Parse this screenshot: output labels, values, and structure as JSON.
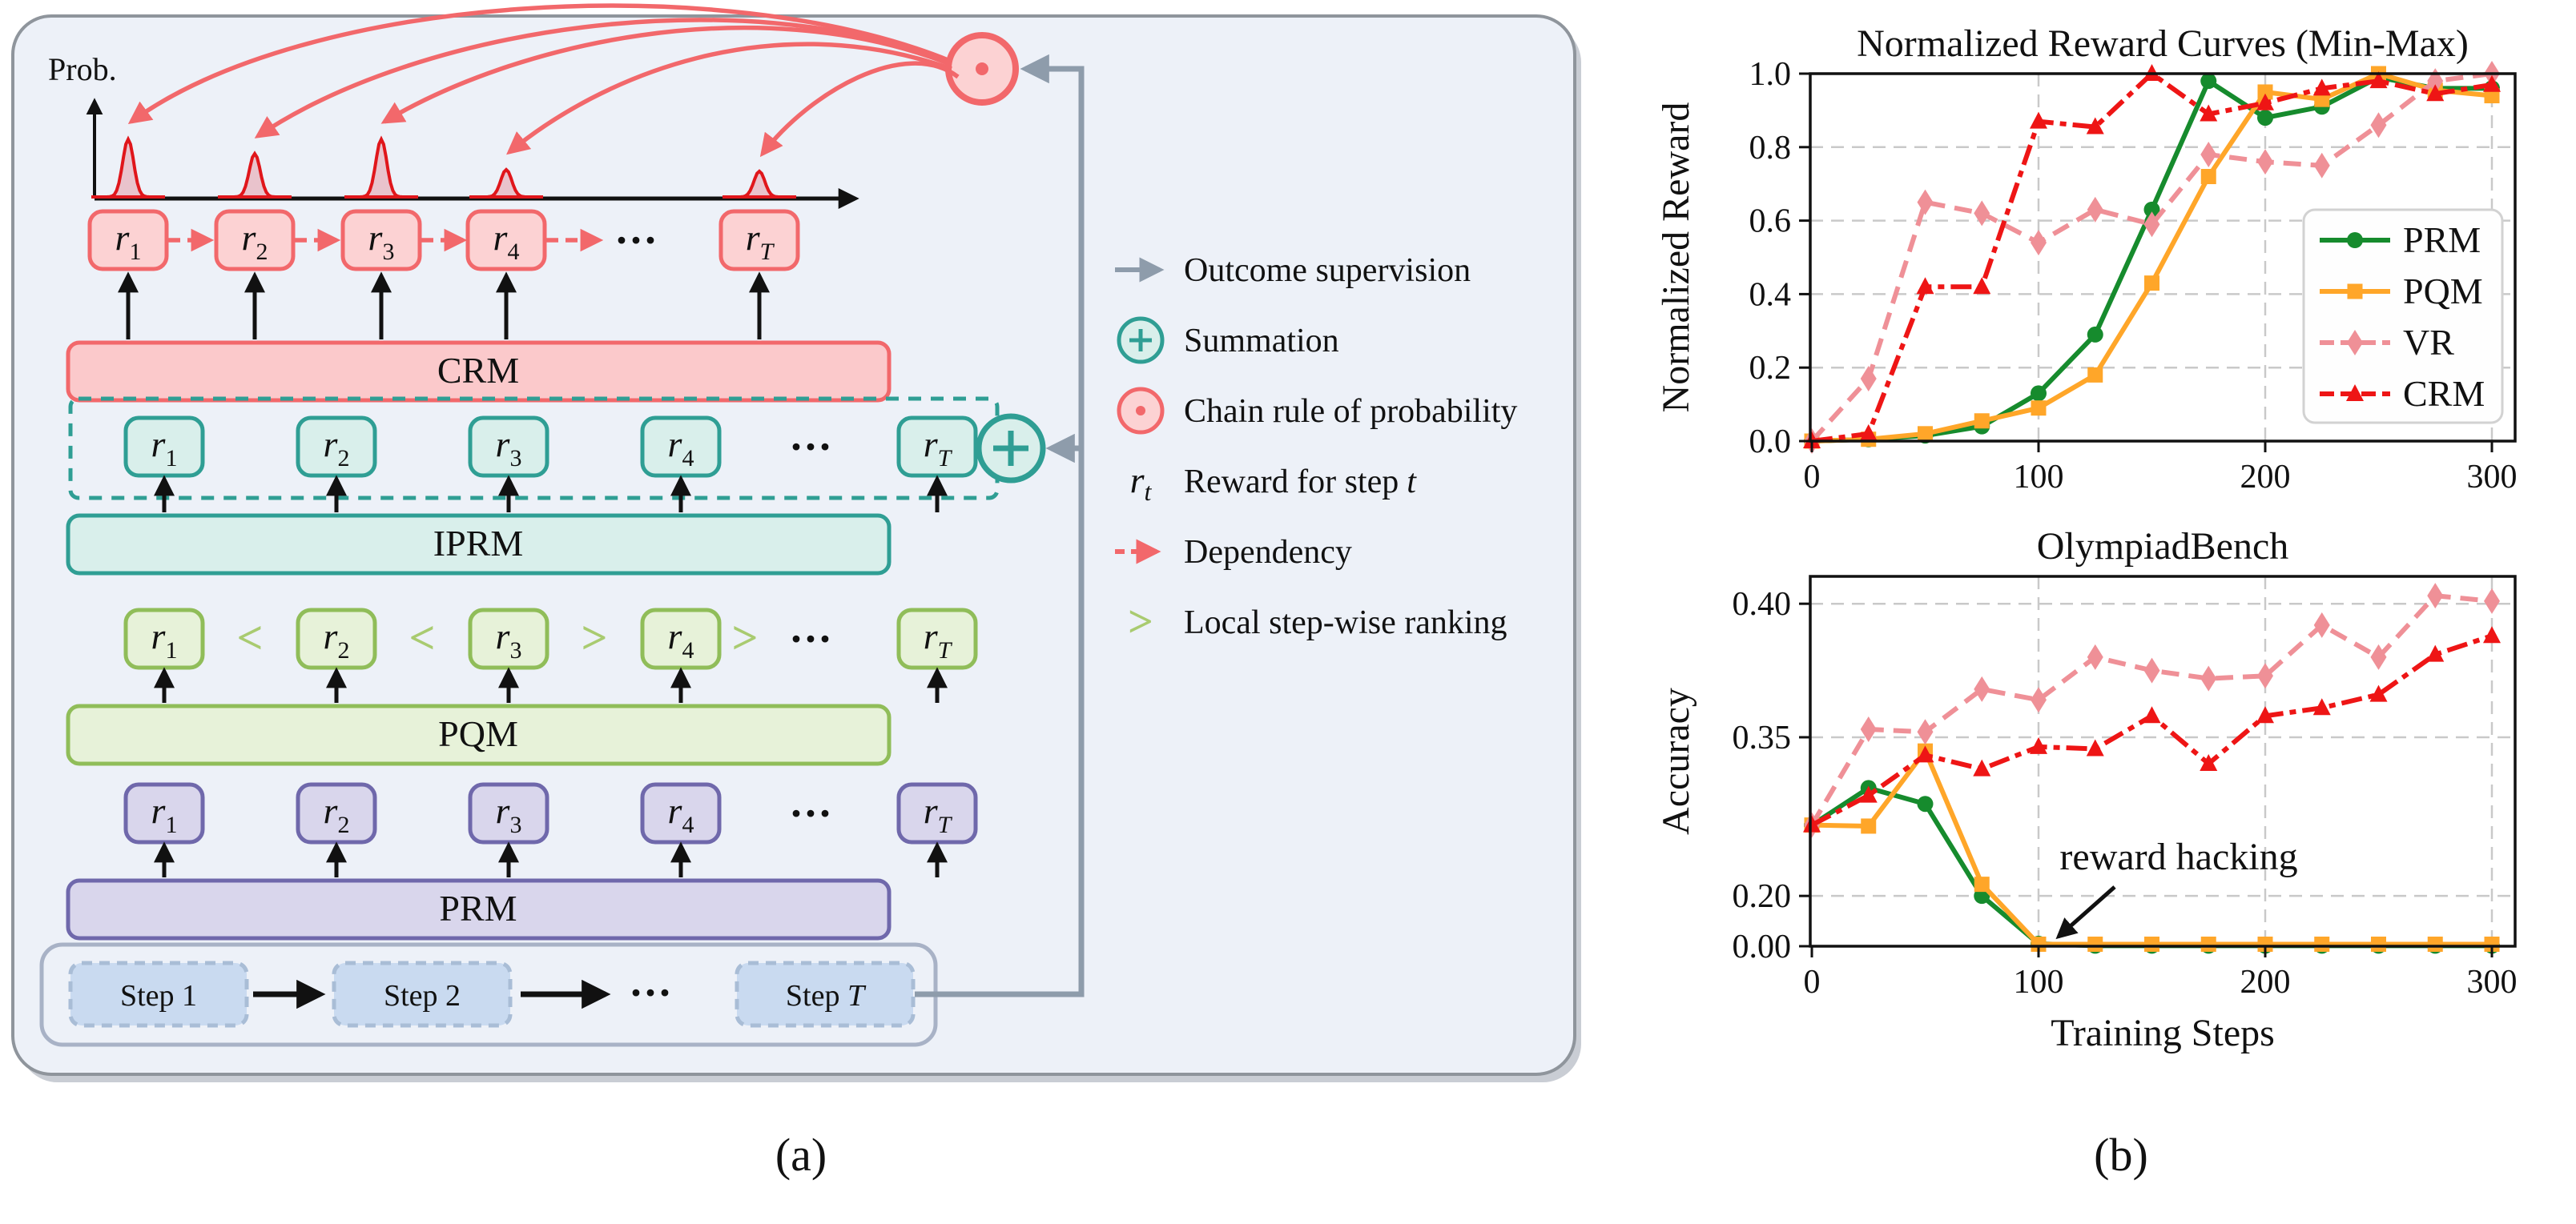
{
  "figure": {
    "caption_a": "(a)",
    "caption_b": "(b)"
  },
  "diagram": {
    "prob_label": "Prob.",
    "reward_base": "r",
    "reward_subscripts": [
      "1",
      "2",
      "3",
      "4",
      "T"
    ],
    "ellipsis": "···",
    "rows": [
      {
        "id": "crm",
        "model_label": "CRM"
      },
      {
        "id": "iprm",
        "model_label": "IPRM"
      },
      {
        "id": "pqm",
        "model_label": "PQM",
        "comparators": [
          "<",
          "<",
          ">",
          ">"
        ]
      },
      {
        "id": "prm",
        "model_label": "PRM"
      }
    ],
    "steps": [
      {
        "text": "Step 1"
      },
      {
        "text": "Step 2"
      },
      {
        "text": "···"
      },
      {
        "text": "Step ",
        "italic": "T"
      }
    ],
    "legend": [
      {
        "icon": "outcome-arrow-icon",
        "label": "Outcome supervision"
      },
      {
        "icon": "summation-icon",
        "label": "Summation"
      },
      {
        "icon": "chain-rule-icon",
        "label": "Chain rule of probability"
      },
      {
        "icon": "reward-symbol",
        "symbol_base": "r",
        "symbol_sub": "t",
        "label": "Reward for step",
        "italic_suffix": "t"
      },
      {
        "icon": "dependency-arrow-icon",
        "label": "Dependency"
      },
      {
        "icon": "ranking-icon",
        "symbol": ">",
        "label": "Local step-wise ranking"
      }
    ]
  },
  "chart_data": [
    {
      "type": "line",
      "title": "Normalized Reward Curves (Min-Max)",
      "xlabel": "",
      "ylabel": "Normalized Reward",
      "x": [
        0,
        25,
        50,
        75,
        100,
        125,
        150,
        175,
        200,
        225,
        250,
        275,
        300
      ],
      "xticks": [
        0,
        100,
        200,
        300
      ],
      "xticklabels": [
        "0",
        "100",
        "200",
        "300"
      ],
      "yticks": [
        0.0,
        0.2,
        0.4,
        0.6,
        0.8,
        1.0
      ],
      "yticklabels": [
        "0.0",
        "0.2",
        "0.4",
        "0.6",
        "0.8",
        "1.0"
      ],
      "xlim": [
        0,
        310
      ],
      "ylim": [
        0,
        1.0
      ],
      "grid": true,
      "legend": true,
      "legend_position": "center right",
      "series": [
        {
          "name": "PRM",
          "color": "#168b2d",
          "marker": "circle",
          "style": "solid",
          "values": [
            0.0,
            0.005,
            0.015,
            0.04,
            0.13,
            0.29,
            0.63,
            0.98,
            0.88,
            0.91,
            0.99,
            0.96,
            0.96
          ]
        },
        {
          "name": "PQM",
          "color": "#ffa629",
          "marker": "square",
          "style": "solid",
          "values": [
            0.0,
            0.005,
            0.02,
            0.055,
            0.09,
            0.18,
            0.43,
            0.72,
            0.95,
            0.93,
            1.0,
            0.955,
            0.94
          ]
        },
        {
          "name": "VR",
          "color": "#ef9097",
          "marker": "diamond",
          "style": "dashed",
          "values": [
            0.0,
            0.17,
            0.65,
            0.62,
            0.54,
            0.63,
            0.59,
            0.78,
            0.76,
            0.75,
            0.86,
            0.98,
            1.0
          ]
        },
        {
          "name": "CRM",
          "color": "#ee1515",
          "marker": "triangle",
          "style": "dashdot",
          "values": [
            0.0,
            0.02,
            0.42,
            0.42,
            0.87,
            0.855,
            1.0,
            0.89,
            0.92,
            0.96,
            0.98,
            0.945,
            0.97
          ]
        }
      ]
    },
    {
      "type": "line",
      "title": "OlympiadBench",
      "xlabel": "Training Steps",
      "ylabel": "Accuracy",
      "x": [
        0,
        25,
        50,
        75,
        100,
        125,
        150,
        175,
        200,
        225,
        250,
        275,
        300
      ],
      "xticks": [
        0,
        100,
        200,
        300
      ],
      "xticklabels": [
        "0",
        "100",
        "200",
        "300"
      ],
      "yticks": [
        0.0,
        0.2,
        0.35,
        0.4
      ],
      "yticklabels": [
        "0.00",
        "0.20",
        "0.35",
        "0.40"
      ],
      "xlim": [
        0,
        310
      ],
      "ylim": [
        0,
        0.41
      ],
      "y_scale_nonlinear_anchors": [
        [
          0,
          0
        ],
        [
          0.2,
          0.136
        ],
        [
          0.35,
          0.565
        ],
        [
          0.4,
          0.926
        ]
      ],
      "grid": true,
      "legend": false,
      "annotation": {
        "text": "reward hacking",
        "points_to_x": 107,
        "points_to_y": 0.0
      },
      "series": [
        {
          "name": "PRM",
          "color": "#168b2d",
          "marker": "circle",
          "style": "solid",
          "values": [
            0.267,
            0.302,
            0.287,
            0.2,
            0.01,
            0.002,
            0.002,
            0.002,
            0.002,
            0.002,
            0.002,
            0.002,
            0.002
          ]
        },
        {
          "name": "PQM",
          "color": "#ffa629",
          "marker": "square",
          "style": "solid",
          "values": [
            0.267,
            0.266,
            0.337,
            0.211,
            0.008,
            0.008,
            0.008,
            0.008,
            0.008,
            0.008,
            0.008,
            0.008,
            0.008
          ]
        },
        {
          "name": "VR",
          "color": "#ef9097",
          "marker": "diamond",
          "style": "dashed",
          "values": [
            0.267,
            0.353,
            0.352,
            0.368,
            0.364,
            0.38,
            0.375,
            0.372,
            0.373,
            0.392,
            0.38,
            0.403,
            0.401
          ]
        },
        {
          "name": "CRM",
          "color": "#ee1515",
          "marker": "triangle",
          "style": "dashdot",
          "values": [
            0.267,
            0.295,
            0.333,
            0.32,
            0.341,
            0.339,
            0.358,
            0.325,
            0.358,
            0.361,
            0.366,
            0.381,
            0.388
          ]
        }
      ]
    }
  ],
  "colors": {
    "panel_bg": "#edf1f8",
    "panel_border": "#8f959c",
    "crm_red": "#f2686b",
    "crm_fill": "#fcd2d3",
    "peak_red": "#e0161b",
    "teal": "#2f9e94",
    "teal_fill": "#d9efeb",
    "green": "#90bd59",
    "green_fill": "#e7f2d9",
    "comparator_green": "#a9cb70",
    "purple": "#6f68ab",
    "purple_fill": "#d9d6ec",
    "step_fill": "#c9daf0",
    "step_border": "#a9bdd6",
    "container_border": "#a8b2c6",
    "gray": "#8e9cab",
    "grid": "#c9c9c9",
    "black": "#111111"
  }
}
